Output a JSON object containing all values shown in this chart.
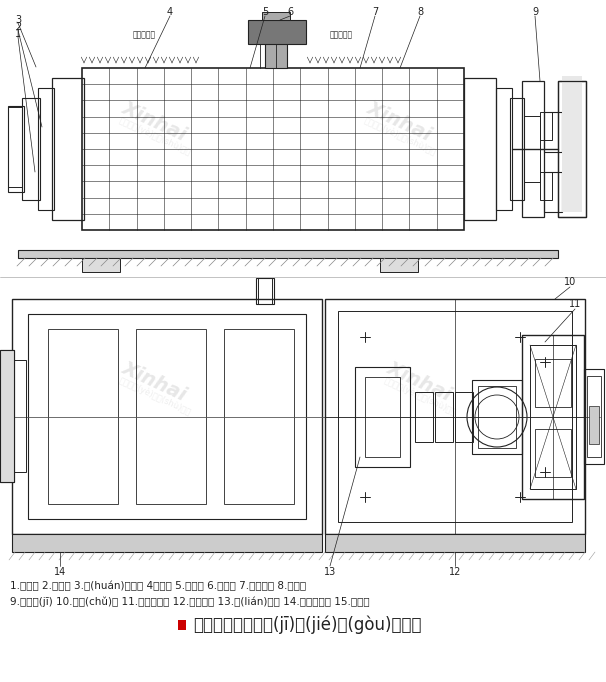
{
  "title": "濕式溢流型球磨機(jī)結(jié)構(gòu)原理圖",
  "title_marker_color": "#cc0000",
  "title_fontsize": 12,
  "legend_line1": "1.給料器 2.軸承部 3.環(huán)形密封 4進料部 5.筒體部 6.傳動部 7.起重裝置 8.出料部",
  "legend_line2": "9.電動機(jī) 10.基礎(chǔ)圖 11.空氣離合器 12.支承軸承 13.聯(lián)軸器 14.慢速傳動部 15.稀油站",
  "legend_fontsize": 7.5,
  "line_color": "#222222",
  "bg_color": "#ffffff",
  "fig_width": 6.06,
  "fig_height": 6.82,
  "dpi": 100,
  "label_low_pressure_left": "低壓給礦口",
  "label_low_pressure_right": "低壓進水口"
}
